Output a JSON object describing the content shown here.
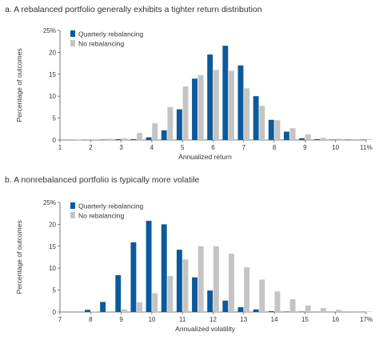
{
  "chart_data": [
    {
      "type": "bar",
      "title": "a. A rebalanced portfolio generally exhibits a tighter return distribution",
      "xlabel": "Annualized return",
      "ylabel": "Percentage of outcomes",
      "ylim": [
        0,
        25
      ],
      "yticks": [
        "25%",
        "20",
        "15",
        "10",
        "5",
        "0"
      ],
      "xticks": [
        "1",
        "2",
        "3",
        "4",
        "5",
        "6",
        "7",
        "8",
        "9",
        "10",
        "11%"
      ],
      "legend": "top-left",
      "colors": {
        "Quarterly rebalancing": "#0b5a9c",
        "No rebalancing": "#c4c4c4"
      },
      "x": [
        1.5,
        2.0,
        2.5,
        3.0,
        3.5,
        4.0,
        4.5,
        5.0,
        5.5,
        6.0,
        6.5,
        7.0,
        7.5,
        8.0,
        8.5,
        9.0,
        9.5,
        10.0,
        10.5,
        11.0
      ],
      "series": [
        {
          "name": "Quarterly rebalancing",
          "values": [
            0,
            0,
            0.1,
            0.2,
            0.2,
            0.6,
            2.2,
            7.0,
            14.0,
            19.5,
            21.5,
            17.0,
            10.0,
            4.6,
            1.9,
            0.4,
            0.2,
            0.1,
            0.1,
            0.1
          ]
        },
        {
          "name": "No rebalancing",
          "values": [
            0.1,
            0.2,
            0.3,
            0.4,
            1.6,
            3.8,
            7.5,
            12.2,
            14.8,
            16.0,
            15.8,
            11.8,
            7.8,
            4.5,
            2.7,
            1.3,
            0.5,
            0.3,
            0.2,
            0.2
          ]
        }
      ]
    },
    {
      "type": "bar",
      "title": "b. A nonrebalanced portfolio is typically more volatile",
      "xlabel": "Annualized volatility",
      "ylabel": "Percentage of outcomes",
      "ylim": [
        0,
        25
      ],
      "yticks": [
        "25%",
        "20",
        "15",
        "10",
        "5",
        "0"
      ],
      "xticks": [
        "7",
        "8",
        "9",
        "10",
        "11",
        "12",
        "13",
        "14",
        "15",
        "16",
        "17%"
      ],
      "legend": "top-center",
      "colors": {
        "Quarterly rebalancing": "#0b5a9c",
        "No rebalancing": "#c4c4c4"
      },
      "x": [
        7.5,
        8.0,
        8.5,
        9.0,
        9.5,
        10.0,
        10.5,
        11.0,
        11.5,
        12.0,
        12.5,
        13.0,
        13.5,
        14.0,
        14.5,
        15.0,
        15.5,
        16.0,
        16.5,
        17.0
      ],
      "series": [
        {
          "name": "Quarterly rebalancing",
          "values": [
            0,
            0.5,
            2.3,
            8.4,
            15.9,
            20.8,
            20.0,
            14.2,
            7.9,
            4.9,
            2.6,
            1.1,
            0.6,
            0.2,
            0.1,
            0.1,
            0,
            0,
            0,
            0
          ]
        },
        {
          "name": "No rebalancing",
          "values": [
            0,
            0.1,
            0.2,
            0.6,
            2.2,
            4.3,
            8.2,
            12.0,
            15.0,
            15.0,
            13.3,
            10.2,
            7.4,
            4.7,
            2.9,
            1.5,
            0.9,
            0.5,
            0.2,
            0.1
          ]
        }
      ]
    }
  ]
}
